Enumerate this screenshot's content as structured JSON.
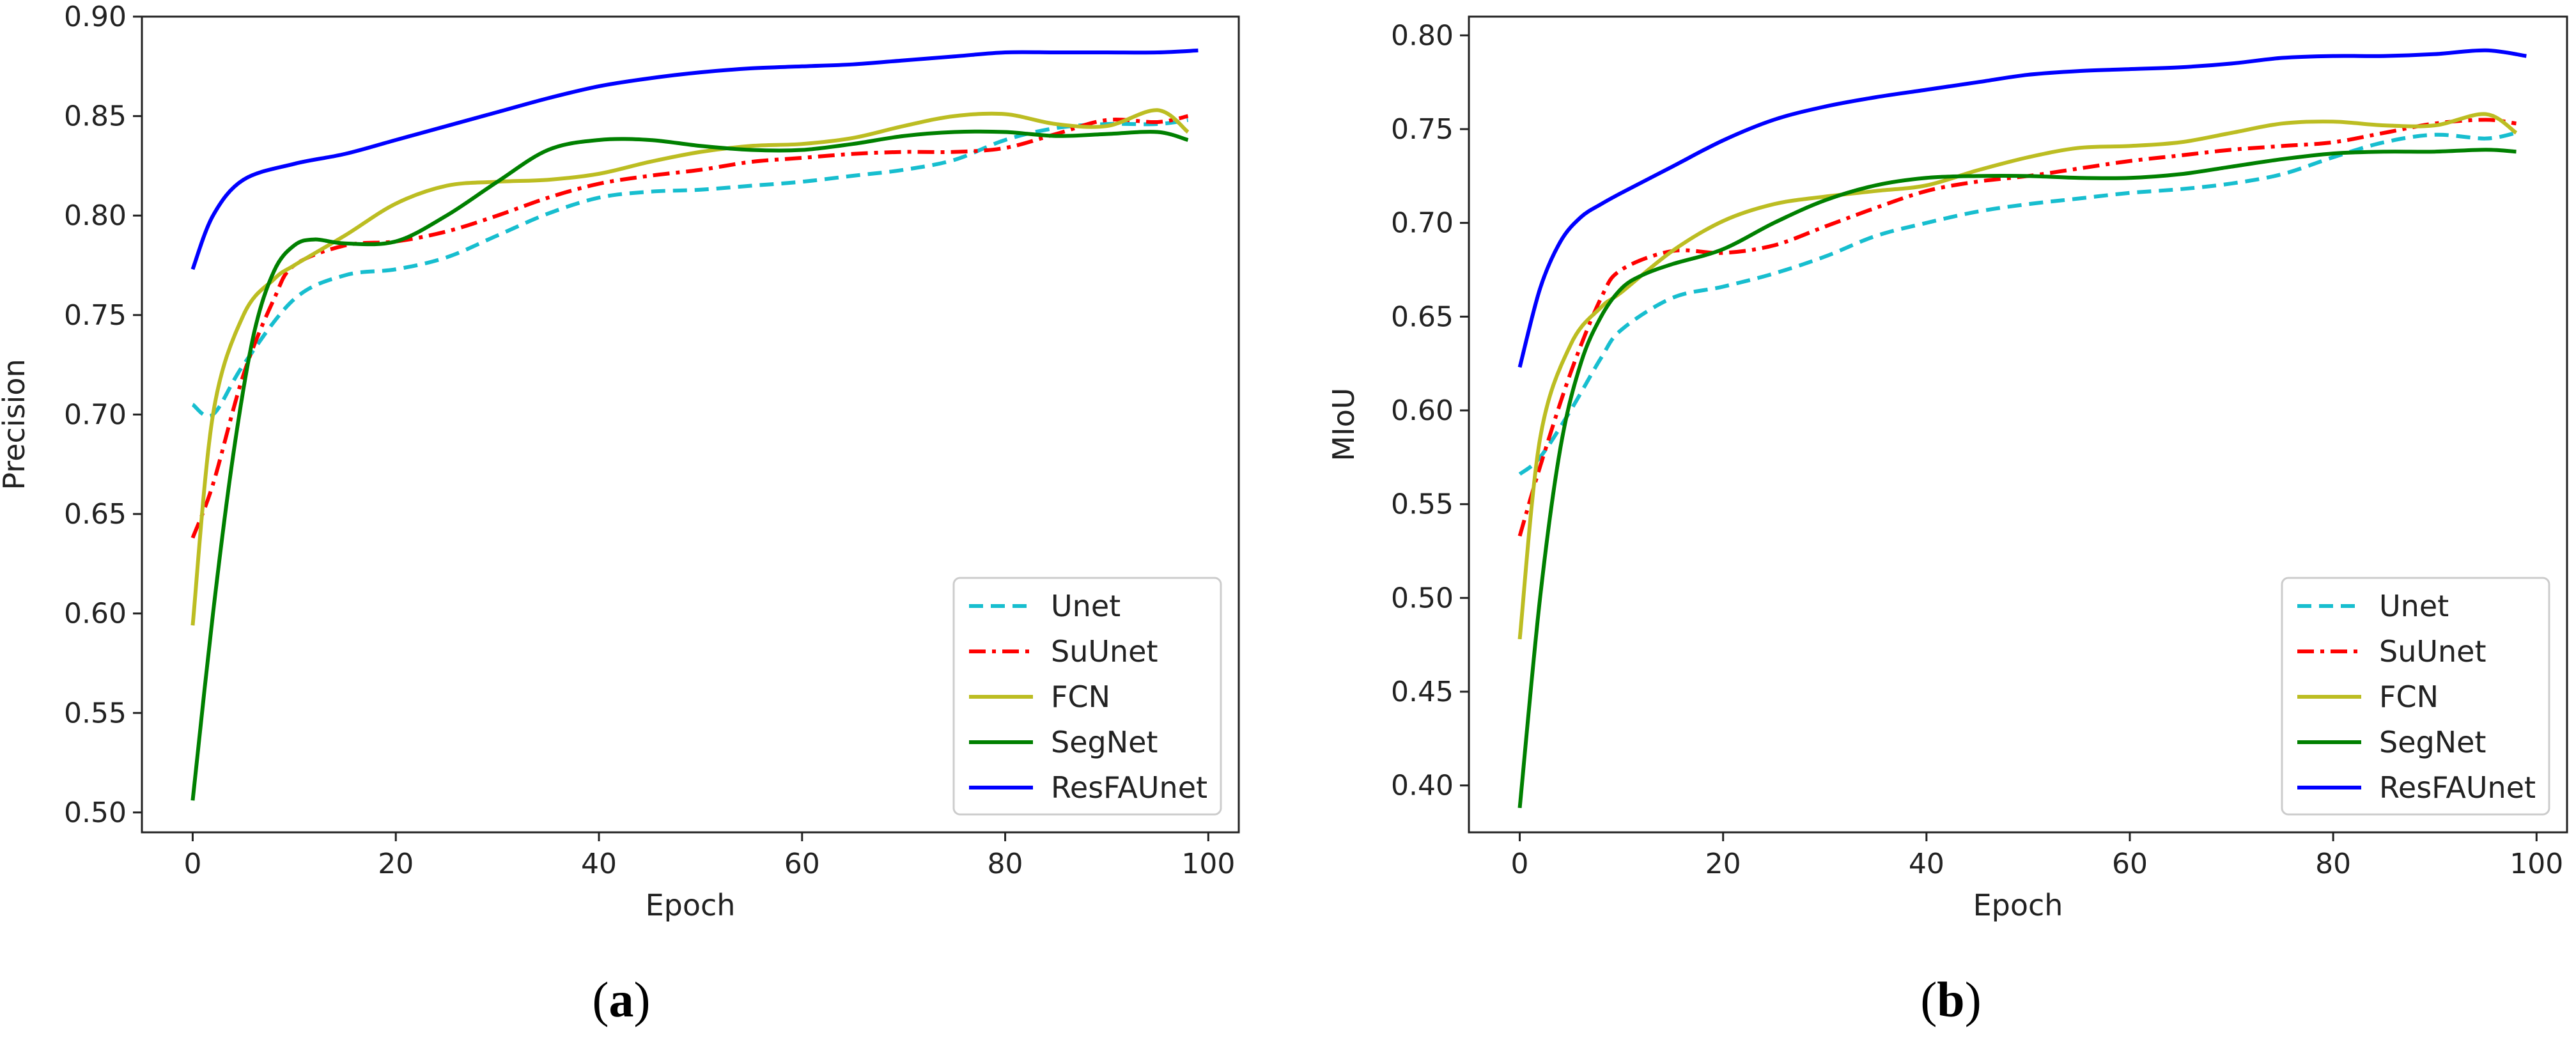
{
  "chart_data": [
    {
      "type": "line",
      "panel_label": "a",
      "caption_open": "(",
      "caption_close": ")",
      "xlabel": "Epoch",
      "ylabel": "Precision",
      "xlim": [
        -5,
        103
      ],
      "ylim": [
        0.49,
        0.9
      ],
      "xticks": [
        0,
        20,
        40,
        60,
        80,
        100
      ],
      "yticks": [
        0.5,
        0.55,
        0.6,
        0.65,
        0.7,
        0.75,
        0.8,
        0.85,
        0.9
      ],
      "legend_position": "lower-right",
      "series": [
        {
          "name": "Unet",
          "color": "#17becf",
          "style": "dashed",
          "x": [
            0,
            2,
            5,
            10,
            15,
            20,
            25,
            30,
            35,
            40,
            45,
            50,
            55,
            60,
            65,
            70,
            75,
            80,
            85,
            90,
            95,
            98
          ],
          "y": [
            0.705,
            0.7,
            0.725,
            0.758,
            0.77,
            0.773,
            0.779,
            0.79,
            0.801,
            0.809,
            0.812,
            0.813,
            0.815,
            0.817,
            0.82,
            0.823,
            0.828,
            0.838,
            0.844,
            0.846,
            0.846,
            0.848
          ]
        },
        {
          "name": "SuUnet",
          "color": "#ff0000",
          "style": "dashdot",
          "x": [
            0,
            2,
            5,
            8,
            10,
            15,
            20,
            25,
            30,
            35,
            40,
            45,
            50,
            55,
            60,
            65,
            70,
            75,
            80,
            85,
            90,
            95,
            98
          ],
          "y": [
            0.638,
            0.665,
            0.72,
            0.758,
            0.775,
            0.785,
            0.787,
            0.792,
            0.8,
            0.809,
            0.816,
            0.82,
            0.823,
            0.827,
            0.829,
            0.831,
            0.832,
            0.832,
            0.834,
            0.841,
            0.848,
            0.847,
            0.85
          ]
        },
        {
          "name": "FCN",
          "color": "#bcbd22",
          "style": "solid",
          "x": [
            0,
            2,
            5,
            8,
            10,
            15,
            20,
            25,
            30,
            35,
            40,
            45,
            50,
            55,
            60,
            65,
            70,
            75,
            80,
            85,
            90,
            95,
            98
          ],
          "y": [
            0.594,
            0.7,
            0.75,
            0.768,
            0.775,
            0.79,
            0.806,
            0.815,
            0.817,
            0.818,
            0.821,
            0.827,
            0.832,
            0.835,
            0.836,
            0.839,
            0.845,
            0.85,
            0.851,
            0.846,
            0.845,
            0.853,
            0.842
          ]
        },
        {
          "name": "SegNet",
          "color": "#008000",
          "style": "solid",
          "x": [
            0,
            2,
            4,
            6,
            8,
            10,
            12,
            15,
            20,
            25,
            30,
            35,
            40,
            45,
            50,
            55,
            60,
            65,
            70,
            75,
            80,
            85,
            90,
            95,
            98
          ],
          "y": [
            0.506,
            0.6,
            0.68,
            0.74,
            0.772,
            0.785,
            0.788,
            0.786,
            0.787,
            0.8,
            0.817,
            0.833,
            0.838,
            0.838,
            0.835,
            0.833,
            0.833,
            0.836,
            0.84,
            0.842,
            0.842,
            0.84,
            0.841,
            0.842,
            0.838
          ]
        },
        {
          "name": "ResFAUnet",
          "color": "#0000ff",
          "style": "solid",
          "x": [
            0,
            2,
            5,
            10,
            15,
            20,
            25,
            30,
            35,
            40,
            45,
            50,
            55,
            60,
            65,
            70,
            75,
            80,
            85,
            90,
            95,
            99
          ],
          "y": [
            0.773,
            0.8,
            0.818,
            0.826,
            0.831,
            0.838,
            0.845,
            0.852,
            0.859,
            0.865,
            0.869,
            0.872,
            0.874,
            0.875,
            0.876,
            0.878,
            0.88,
            0.882,
            0.882,
            0.882,
            0.882,
            0.883
          ]
        }
      ]
    },
    {
      "type": "line",
      "panel_label": "b",
      "caption_open": "(",
      "caption_close": ")",
      "xlabel": "Epoch",
      "ylabel": "MIoU",
      "xlim": [
        -5,
        103
      ],
      "ylim": [
        0.375,
        0.81
      ],
      "xticks": [
        0,
        20,
        40,
        60,
        80,
        100
      ],
      "yticks": [
        0.4,
        0.45,
        0.5,
        0.55,
        0.6,
        0.65,
        0.7,
        0.75,
        0.8
      ],
      "legend_position": "lower-right",
      "series": [
        {
          "name": "Unet",
          "color": "#17becf",
          "style": "dashed",
          "x": [
            0,
            2,
            5,
            8,
            10,
            15,
            20,
            25,
            30,
            35,
            40,
            45,
            50,
            55,
            60,
            65,
            70,
            75,
            80,
            85,
            90,
            95,
            98
          ],
          "y": [
            0.566,
            0.575,
            0.6,
            0.628,
            0.643,
            0.66,
            0.666,
            0.673,
            0.682,
            0.693,
            0.7,
            0.706,
            0.71,
            0.713,
            0.716,
            0.718,
            0.721,
            0.726,
            0.735,
            0.743,
            0.747,
            0.745,
            0.748
          ]
        },
        {
          "name": "SuUnet",
          "color": "#ff0000",
          "style": "dashdot",
          "x": [
            0,
            2,
            5,
            8,
            10,
            15,
            20,
            25,
            30,
            35,
            40,
            45,
            50,
            55,
            60,
            65,
            70,
            75,
            80,
            85,
            90,
            95,
            98
          ],
          "y": [
            0.533,
            0.57,
            0.62,
            0.66,
            0.675,
            0.685,
            0.684,
            0.688,
            0.698,
            0.708,
            0.717,
            0.722,
            0.725,
            0.729,
            0.733,
            0.736,
            0.739,
            0.741,
            0.743,
            0.748,
            0.753,
            0.755,
            0.753
          ]
        },
        {
          "name": "FCN",
          "color": "#bcbd22",
          "style": "solid",
          "x": [
            0,
            2,
            5,
            8,
            10,
            15,
            20,
            25,
            30,
            35,
            40,
            45,
            50,
            55,
            60,
            65,
            70,
            75,
            80,
            85,
            90,
            95,
            98
          ],
          "y": [
            0.478,
            0.585,
            0.635,
            0.655,
            0.663,
            0.685,
            0.701,
            0.71,
            0.714,
            0.717,
            0.72,
            0.728,
            0.735,
            0.74,
            0.741,
            0.743,
            0.748,
            0.753,
            0.754,
            0.752,
            0.752,
            0.758,
            0.748
          ]
        },
        {
          "name": "SegNet",
          "color": "#008000",
          "style": "solid",
          "x": [
            0,
            2,
            4,
            6,
            8,
            10,
            12,
            15,
            20,
            25,
            30,
            35,
            40,
            45,
            50,
            55,
            60,
            65,
            70,
            75,
            80,
            85,
            90,
            95,
            98
          ],
          "y": [
            0.388,
            0.5,
            0.58,
            0.625,
            0.65,
            0.665,
            0.672,
            0.678,
            0.686,
            0.7,
            0.712,
            0.72,
            0.724,
            0.725,
            0.725,
            0.724,
            0.724,
            0.726,
            0.73,
            0.734,
            0.737,
            0.738,
            0.738,
            0.739,
            0.738
          ]
        },
        {
          "name": "ResFAUnet",
          "color": "#0000ff",
          "style": "solid",
          "x": [
            0,
            2,
            4,
            6,
            8,
            10,
            15,
            20,
            25,
            30,
            35,
            40,
            45,
            50,
            55,
            60,
            65,
            70,
            75,
            80,
            85,
            90,
            95,
            99
          ],
          "y": [
            0.623,
            0.665,
            0.69,
            0.703,
            0.71,
            0.716,
            0.73,
            0.744,
            0.755,
            0.762,
            0.767,
            0.771,
            0.775,
            0.779,
            0.781,
            0.782,
            0.783,
            0.785,
            0.788,
            0.789,
            0.789,
            0.79,
            0.792,
            0.789
          ]
        }
      ]
    }
  ]
}
